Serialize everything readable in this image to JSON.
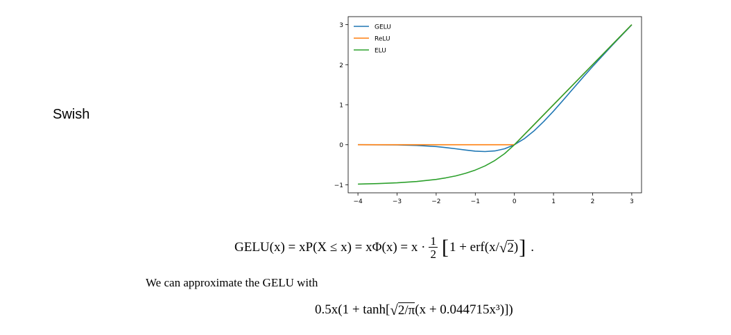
{
  "left_label": "Swish",
  "chart_data": {
    "type": "line",
    "title": "",
    "xlabel": "",
    "ylabel": "",
    "xlim": [
      -4.25,
      3.25
    ],
    "ylim": [
      -1.2,
      3.2
    ],
    "xticks": [
      -4,
      -3,
      -2,
      -1,
      0,
      1,
      2,
      3
    ],
    "yticks": [
      -1,
      0,
      1,
      2,
      3
    ],
    "xtick_labels": [
      "−4",
      "−3",
      "−2",
      "−1",
      "0",
      "1",
      "2",
      "3"
    ],
    "ytick_labels": [
      "−1",
      "0",
      "1",
      "2",
      "3"
    ],
    "legend_position": "top-left",
    "grid": false,
    "series": [
      {
        "name": "GELU",
        "color": "#1f77b4",
        "x": [
          -4,
          -3.5,
          -3,
          -2.5,
          -2,
          -1.75,
          -1.5,
          -1.25,
          -1,
          -0.75,
          -0.5,
          -0.25,
          0,
          0.25,
          0.5,
          0.75,
          1,
          1.25,
          1.5,
          1.75,
          2,
          2.5,
          3
        ],
        "y": [
          0,
          -0.001,
          -0.004,
          -0.016,
          -0.045,
          -0.07,
          -0.1,
          -0.132,
          -0.159,
          -0.17,
          -0.154,
          -0.1,
          0,
          0.15,
          0.346,
          0.58,
          0.841,
          1.118,
          1.4,
          1.68,
          1.955,
          2.484,
          2.996
        ]
      },
      {
        "name": "ReLU",
        "color": "#ff7f0e",
        "x": [
          -4,
          0,
          3
        ],
        "y": [
          0,
          0,
          3
        ]
      },
      {
        "name": "ELU",
        "color": "#2ca02c",
        "x": [
          -4,
          -3.5,
          -3,
          -2.5,
          -2,
          -1.75,
          -1.5,
          -1.25,
          -1,
          -0.75,
          -0.5,
          -0.25,
          0,
          3
        ],
        "y": [
          -0.982,
          -0.97,
          -0.95,
          -0.918,
          -0.865,
          -0.826,
          -0.777,
          -0.713,
          -0.632,
          -0.528,
          -0.393,
          -0.221,
          0,
          3
        ]
      }
    ]
  },
  "equation1": {
    "lhs": "GELU(x) = xP(X ≤ x) = xΦ(x) = x ·",
    "frac_num": "1",
    "frac_den": "2",
    "bracket_open": "[",
    "bracket_content": "1 + erf(x/",
    "sqrt_content": "2",
    "close_paren": ")",
    "bracket_close": "]",
    "trailing": "."
  },
  "paragraph": "We can approximate the GELU with",
  "equation2": {
    "prefix": "0.5x(1 + tanh[",
    "sqrt_content": "2/π",
    "suffix": "(x + 0.044715x³)])"
  }
}
